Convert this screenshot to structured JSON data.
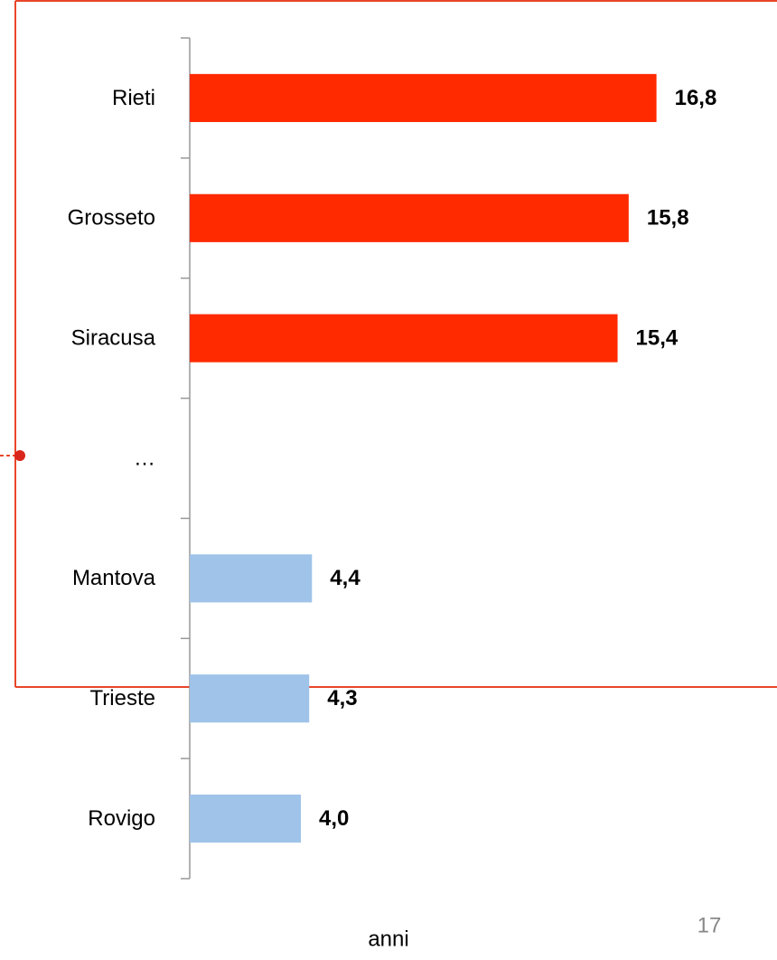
{
  "chart_data": {
    "type": "bar",
    "orientation": "horizontal",
    "categories": [
      "Rieti",
      "Grosseto",
      "Siracusa",
      "…",
      "Mantova",
      "Trieste",
      "Rovigo"
    ],
    "values": [
      16.8,
      15.8,
      15.4,
      null,
      4.4,
      4.3,
      4.0
    ],
    "value_labels": [
      "16,8",
      "15,8",
      "15,4",
      null,
      "4,4",
      "4,3",
      "4,0"
    ],
    "colors": [
      "#ff2a00",
      "#ff2a00",
      "#ff2a00",
      null,
      "#9fc3e9",
      "#9fc3e9",
      "#9fc3e9"
    ],
    "xlim": [
      0,
      20
    ],
    "xlabel": "anni"
  },
  "page_number": "17"
}
